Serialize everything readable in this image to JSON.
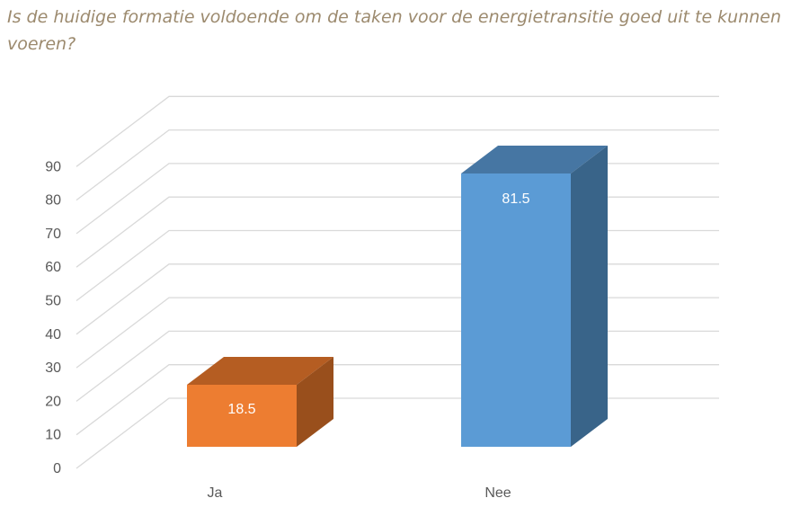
{
  "chart_data": {
    "type": "bar",
    "style": "3d-column",
    "title": "Is de huidige formatie voldoende om de taken voor de energietransitie goed uit te kunnen voeren?",
    "categories": [
      "Ja",
      "Nee"
    ],
    "values": [
      18.5,
      81.5
    ],
    "data_labels": [
      "18.5",
      "81.5"
    ],
    "ylim": [
      0,
      90
    ],
    "yticks": [
      0,
      10,
      20,
      30,
      40,
      50,
      60,
      70,
      80,
      90
    ],
    "grid": true,
    "legend": "none",
    "colors": {
      "Ja": {
        "front": "#ED7D31",
        "top": "#B55D22",
        "side": "#994F1C"
      },
      "Nee": {
        "front": "#5B9BD5",
        "top": "#4676A3",
        "side": "#396489"
      },
      "title": "#9C8A6E",
      "grid": "#D9D9D9",
      "axis_text": "#595959"
    }
  }
}
